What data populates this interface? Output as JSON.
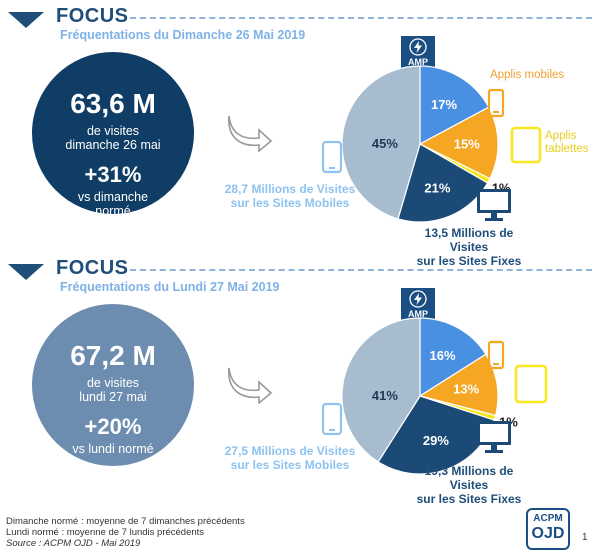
{
  "sections": [
    {
      "focus": "FOCUS",
      "subtitle": "Fréquentations du Dimanche 26 Mai 2019",
      "visits": "63,6 M",
      "visits_caption_1": "de visites",
      "visits_caption_2": "dimanche 26 mai",
      "growth": "+31%",
      "growth_caption_1": "vs dimanche",
      "growth_caption_2": "normé",
      "amp_label": "AMP",
      "mobile_text_1": "28,7 Millions de Visites",
      "mobile_text_2": "sur les Sites Mobiles",
      "fixed_text_1": "13,5 Millions de Visites",
      "fixed_text_2": "sur les Sites Fixes",
      "applis_mobiles": "Applis mobiles",
      "applis_tablettes_1": "Applis",
      "applis_tablettes_2": "tablettes",
      "circle_color": "#0f3d66"
    },
    {
      "focus": "FOCUS",
      "subtitle": "Fréquentations du Lundi 27 Mai 2019",
      "visits": "67,2 M",
      "visits_caption_1": "de visites",
      "visits_caption_2": "lundi 27 mai",
      "growth": "+20%",
      "growth_caption_1": "vs lundi normé",
      "growth_caption_2": "",
      "amp_label": "AMP",
      "mobile_text_1": "27,5 Millions de Visites",
      "mobile_text_2": "sur les Sites Mobiles",
      "fixed_text_1": "19,3 Millions de Visites",
      "fixed_text_2": "sur les Sites Fixes",
      "applis_mobiles": "",
      "applis_tablettes_1": "",
      "applis_tablettes_2": "",
      "circle_color": "#6d8db0"
    }
  ],
  "chart_data": [
    {
      "type": "pie",
      "title": "",
      "slices": [
        {
          "label": "AMP",
          "value": 17,
          "display": "17%",
          "color": "#4a90e2"
        },
        {
          "label": "Applis mobiles",
          "value": 15,
          "display": "15%",
          "color": "#f5a623"
        },
        {
          "label": "Applis tablettes",
          "value": 1,
          "display": "1%",
          "color": "#f8e71c"
        },
        {
          "label": "Sites Fixes",
          "value": 21,
          "display": "21%",
          "color": "#1a4a75"
        },
        {
          "label": "Sites Mobiles",
          "value": 45,
          "display": "45%",
          "color": "#a8bccf"
        }
      ]
    },
    {
      "type": "pie",
      "title": "",
      "slices": [
        {
          "label": "AMP",
          "value": 16,
          "display": "16%",
          "color": "#4a90e2"
        },
        {
          "label": "Applis mobiles",
          "value": 13,
          "display": "13%",
          "color": "#f5a623"
        },
        {
          "label": "Applis tablettes",
          "value": 1,
          "display": "1%",
          "color": "#f8e71c"
        },
        {
          "label": "Sites Fixes",
          "value": 29,
          "display": "29%",
          "color": "#1a4a75"
        },
        {
          "label": "Sites Mobiles",
          "value": 41,
          "display": "41%",
          "color": "#a8bccf"
        }
      ]
    }
  ],
  "footer": {
    "line1": "Dimanche normé : moyenne de 7 dimanches précédents",
    "line2": "Lundi normé : moyenne de 7 lundis précédents",
    "source": "Source : ACPM OJD - Mai 2019"
  },
  "logo": {
    "top": "ACPM",
    "bottom": "OJD"
  },
  "page_number": "1",
  "icons": [
    "amp-lightning-icon",
    "smartphone-icon",
    "tablet-icon",
    "monitor-icon",
    "curved-arrow-icon"
  ]
}
